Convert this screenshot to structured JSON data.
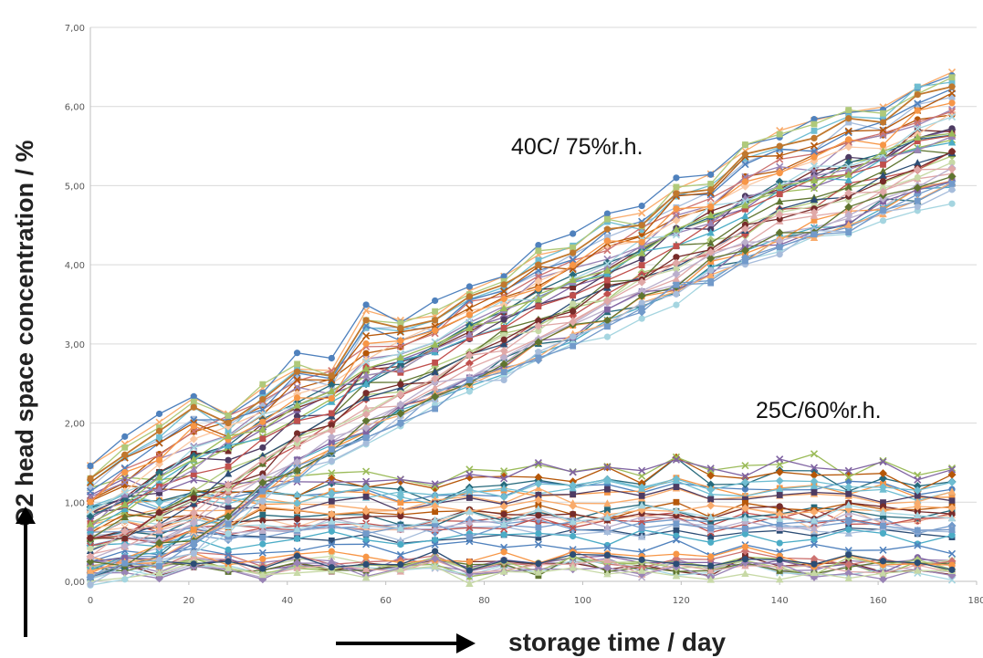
{
  "chart_data": {
    "type": "line",
    "title": "",
    "xlabel": "storage time / day",
    "ylabel": "O2 head space concentration / %",
    "xlim": [
      0,
      180
    ],
    "ylim": [
      0,
      7
    ],
    "xticks": [
      "0",
      "20",
      "40",
      "60",
      "80",
      "100",
      "120",
      "140",
      "160",
      "180"
    ],
    "yticks": [
      "0,00",
      "1,00",
      "2,00",
      "3,00",
      "4,00",
      "5,00",
      "6,00",
      "7,00"
    ],
    "grid": "horizontal",
    "annotations": [
      {
        "text": "40C/ 75%r.h.",
        "group": "40C"
      },
      {
        "text": "25C/60%r.h.",
        "group": "25C"
      }
    ],
    "groups": [
      {
        "label": "40C/ 75%r.h.",
        "representative_series": [
          {
            "x": [
              0,
              7,
              14,
              21,
              28,
              35,
              42,
              49,
              56,
              63,
              70,
              77,
              84,
              91,
              98,
              105,
              112,
              119,
              126,
              133,
              140,
              147,
              154,
              161,
              168,
              175
            ],
            "y": [
              1.3,
              1.6,
              1.9,
              2.2,
              2.0,
              2.3,
              2.65,
              2.6,
              3.3,
              3.2,
              3.3,
              3.6,
              3.75,
              4.0,
              4.15,
              4.45,
              4.5,
              4.9,
              4.95,
              5.4,
              5.5,
              5.6,
              5.85,
              5.8,
              6.15,
              6.25
            ]
          },
          {
            "x": [
              0,
              7,
              14,
              21,
              28,
              35,
              42,
              49,
              56,
              63,
              70,
              77,
              84,
              91,
              98,
              105,
              112,
              119,
              126,
              133,
              140,
              147,
              154,
              161,
              168,
              175
            ],
            "y": [
              0.8,
              1.05,
              1.3,
              1.55,
              1.8,
              2.0,
              2.2,
              2.4,
              2.6,
              2.8,
              3.0,
              3.2,
              3.4,
              3.6,
              3.8,
              4.0,
              4.2,
              4.4,
              4.6,
              4.8,
              5.0,
              5.1,
              5.25,
              5.4,
              5.55,
              5.7
            ]
          },
          {
            "x": [
              0,
              7,
              14,
              21,
              28,
              35,
              42,
              49,
              56,
              63,
              70,
              77,
              84,
              91,
              98,
              105,
              112,
              119,
              126,
              133,
              140,
              147,
              154,
              161,
              168,
              175
            ],
            "y": [
              0.1,
              0.2,
              0.3,
              0.5,
              0.8,
              1.1,
              1.4,
              1.65,
              1.9,
              2.1,
              2.3,
              2.5,
              2.7,
              2.9,
              3.1,
              3.3,
              3.5,
              3.7,
              3.9,
              4.1,
              4.25,
              4.4,
              4.55,
              4.7,
              4.85,
              5.0
            ]
          }
        ]
      },
      {
        "label": "25C/60%r.h.",
        "representative_series": [
          {
            "x": [
              0,
              7,
              14,
              21,
              28,
              35,
              42,
              49,
              56,
              63,
              70,
              77,
              84,
              91,
              98,
              105,
              112,
              119,
              126,
              133,
              140,
              147,
              154,
              161,
              168,
              175
            ],
            "y": [
              1.1,
              1.2,
              1.15,
              1.3,
              1.2,
              1.25,
              1.2,
              1.3,
              1.3,
              1.25,
              1.2,
              1.3,
              1.35,
              1.4,
              1.3,
              1.45,
              1.35,
              1.6,
              1.4,
              1.35,
              1.45,
              1.5,
              1.35,
              1.4,
              1.3,
              1.4
            ]
          },
          {
            "x": [
              0,
              7,
              14,
              21,
              28,
              35,
              42,
              49,
              56,
              63,
              70,
              77,
              84,
              91,
              98,
              105,
              112,
              119,
              126,
              133,
              140,
              147,
              154,
              161,
              168,
              175
            ],
            "y": [
              0.6,
              0.7,
              0.65,
              0.75,
              0.7,
              0.8,
              0.75,
              0.85,
              0.8,
              0.75,
              0.8,
              0.85,
              0.8,
              0.9,
              0.85,
              0.8,
              0.9,
              0.85,
              0.8,
              0.9,
              0.85,
              0.8,
              0.9,
              0.85,
              0.8,
              0.85
            ]
          },
          {
            "x": [
              0,
              7,
              14,
              21,
              28,
              35,
              42,
              49,
              56,
              63,
              70,
              77,
              84,
              91,
              98,
              105,
              112,
              119,
              126,
              133,
              140,
              147,
              154,
              161,
              168,
              175
            ],
            "y": [
              0.1,
              0.15,
              0.1,
              0.2,
              0.15,
              0.1,
              0.2,
              0.15,
              0.1,
              0.15,
              0.2,
              0.1,
              0.15,
              0.1,
              0.2,
              0.15,
              0.1,
              0.15,
              0.1,
              0.2,
              0.15,
              0.1,
              0.15,
              0.1,
              0.15,
              0.1
            ]
          }
        ]
      }
    ],
    "palette": [
      "#4F81BD",
      "#C0504D",
      "#9BBB59",
      "#8064A2",
      "#4BACC6",
      "#F79646",
      "#2C4D75",
      "#772C2A",
      "#5F7530",
      "#4D3B62",
      "#276A7C",
      "#B65708",
      "#729ACA",
      "#CD7371",
      "#AFC97A",
      "#9983B5",
      "#6FBDD1",
      "#F9AB6B",
      "#A6BCDB",
      "#E0A8A7",
      "#C7D9A6",
      "#BBAFCC",
      "#A5D5E0",
      "#FAC7A2"
    ],
    "highlight_color": "#C0782E"
  }
}
